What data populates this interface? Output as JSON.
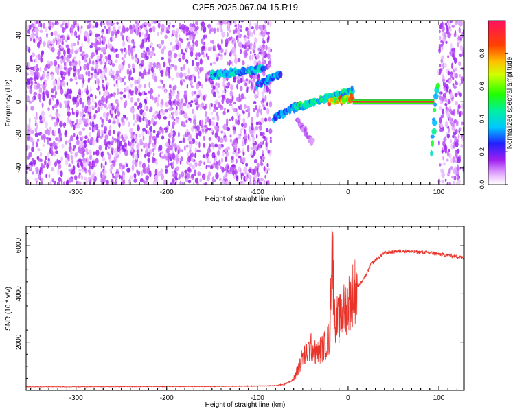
{
  "title": "C2E5.2025.067.04.15.R19",
  "chart_data": [
    {
      "type": "heatmap",
      "xlabel": "Height of straight line (km)",
      "ylabel": "Frequency (Hz)",
      "xlim": [
        -355,
        128
      ],
      "ylim": [
        -50,
        49
      ],
      "xticks": [
        -300,
        -200,
        -100,
        0,
        100
      ],
      "yticks": [
        -40,
        -20,
        0,
        20,
        40
      ],
      "colorbar": {
        "label": "Normalized spectral amplitude",
        "range": [
          0,
          1
        ],
        "ticks": [
          "0.0",
          "0.2",
          "0.4",
          "0.6",
          "0.8"
        ],
        "tick_values": [
          0,
          0.2,
          0.4,
          0.6,
          0.8
        ],
        "colormap": "rainbow (magenta to red)"
      },
      "features": [
        {
          "x": [
            -355,
            -85
          ],
          "y": [
            -50,
            49
          ],
          "amplitude": 0.12,
          "kind": "noise"
        },
        {
          "x": [
            -150,
            -93
          ],
          "y": [
            16,
            20
          ],
          "amplitude": 0.35,
          "kind": "signal"
        },
        {
          "x": [
            -100,
            -75
          ],
          "y": [
            10,
            17
          ],
          "amplitude": 0.3,
          "kind": "signal"
        },
        {
          "x": [
            -82,
            -55
          ],
          "y": [
            -10,
            -2
          ],
          "amplitude": 0.3,
          "kind": "signal"
        },
        {
          "x": [
            -60,
            5
          ],
          "y": [
            -4,
            7
          ],
          "amplitude": 0.4,
          "kind": "signal"
        },
        {
          "x": [
            -55,
            -40
          ],
          "y": [
            -12,
            -24
          ],
          "amplitude": 0.1,
          "kind": "faint tail"
        },
        {
          "x": [
            -20,
            5
          ],
          "y": [
            0,
            2
          ],
          "amplitude": 0.7,
          "kind": "signal"
        },
        {
          "x": [
            5,
            95
          ],
          "y": [
            0,
            0
          ],
          "amplitude": 0.9,
          "kind": "carrier"
        },
        {
          "x": [
            92,
            98
          ],
          "y": [
            -30,
            10
          ],
          "amplitude": 0.45,
          "kind": "vertical stripe"
        },
        {
          "x": [
            100,
            128
          ],
          "y": [
            -50,
            49
          ],
          "amplitude": 0.12,
          "kind": "noise"
        }
      ]
    },
    {
      "type": "line",
      "xlabel": "Height of straight line (km)",
      "ylabel": "SNR (10 * v/v)",
      "xlim": [
        -355,
        128
      ],
      "ylim": [
        0,
        6800
      ],
      "xticks": [
        -300,
        -200,
        -100,
        0,
        100
      ],
      "yticks": [
        2000,
        4000,
        6000
      ],
      "color": "#e8332a",
      "series": [
        {
          "x": [
            -355,
            -300,
            -250,
            -200,
            -150,
            -120,
            -100,
            -80,
            -70,
            -60,
            -55,
            -50,
            -45,
            -40,
            -35,
            -30,
            -25,
            -20,
            -18,
            -15,
            -10,
            -5,
            0,
            5,
            10,
            15,
            20,
            25,
            30,
            35,
            40,
            50,
            60,
            70,
            80,
            90,
            100,
            110,
            120,
            128
          ],
          "y": [
            150,
            150,
            155,
            160,
            165,
            175,
            180,
            200,
            250,
            450,
            900,
            1400,
            1600,
            1800,
            1500,
            1700,
            1900,
            2200,
            6700,
            3000,
            2900,
            3300,
            3600,
            4000,
            4300,
            4500,
            4800,
            5200,
            5400,
            5550,
            5700,
            5750,
            5780,
            5750,
            5720,
            5700,
            5650,
            5600,
            5550,
            5500
          ]
        }
      ]
    }
  ]
}
